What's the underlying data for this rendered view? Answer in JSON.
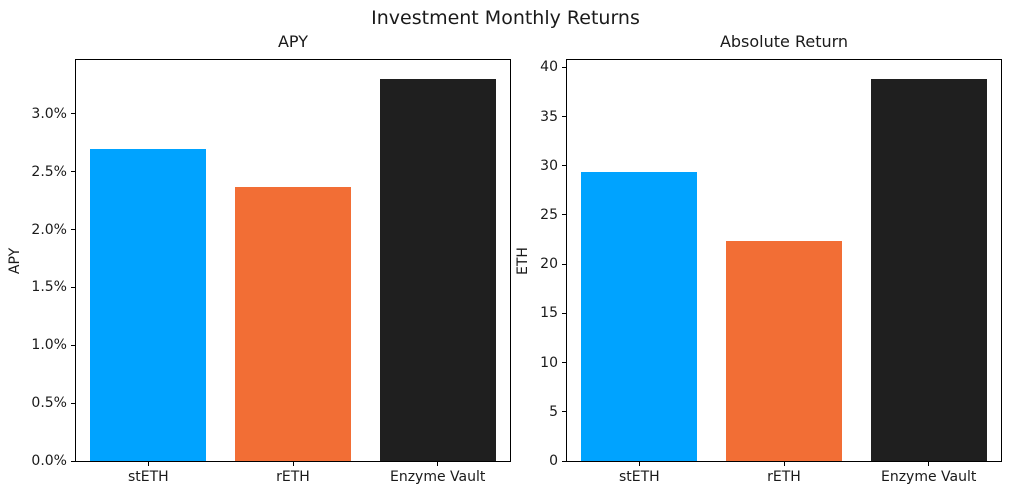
{
  "figure": {
    "title": "Investment Monthly Returns"
  },
  "chart_data": [
    {
      "type": "bar",
      "name": "apy-subplot",
      "title": "APY",
      "xlabel": "",
      "ylabel": "APY",
      "categories": [
        "stETH",
        "rETH",
        "Enzyme Vault"
      ],
      "values": [
        2.7,
        2.37,
        3.3
      ],
      "value_format": "percent",
      "ylim": [
        0,
        3.465
      ],
      "grid": false,
      "yticks": [
        {
          "label": "0.0%",
          "value": 0.0
        },
        {
          "label": "0.5%",
          "value": 0.5
        },
        {
          "label": "1.0%",
          "value": 1.0
        },
        {
          "label": "1.5%",
          "value": 1.5
        },
        {
          "label": "2.0%",
          "value": 2.0
        },
        {
          "label": "2.5%",
          "value": 2.5
        },
        {
          "label": "3.0%",
          "value": 3.0
        }
      ],
      "bar_colors": [
        "#00A3FF",
        "#F26E35",
        "#1F1F1F"
      ]
    },
    {
      "type": "bar",
      "name": "absolute-return-subplot",
      "title": "Absolute Return",
      "xlabel": "",
      "ylabel": "ETH",
      "categories": [
        "stETH",
        "rETH",
        "Enzyme Vault"
      ],
      "values": [
        29.4,
        22.4,
        38.8
      ],
      "value_format": "eth",
      "ylim": [
        0,
        40.74
      ],
      "grid": false,
      "yticks": [
        {
          "label": "0",
          "value": 0
        },
        {
          "label": "5",
          "value": 5
        },
        {
          "label": "10",
          "value": 10
        },
        {
          "label": "15",
          "value": 15
        },
        {
          "label": "20",
          "value": 20
        },
        {
          "label": "25",
          "value": 25
        },
        {
          "label": "30",
          "value": 30
        },
        {
          "label": "35",
          "value": 35
        },
        {
          "label": "40",
          "value": 40
        }
      ],
      "bar_colors": [
        "#00A3FF",
        "#F26E35",
        "#1F1F1F"
      ]
    }
  ]
}
